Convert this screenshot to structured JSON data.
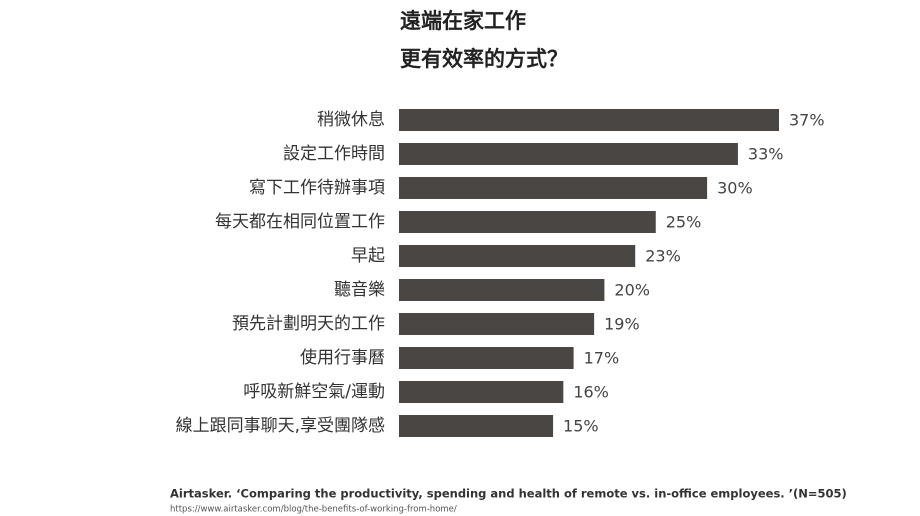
{
  "chart_data": {
    "type": "bar",
    "orientation": "horizontal",
    "title_lines": [
      "遠端在家工作",
      "更有效率的方式？"
    ],
    "categories": [
      "稍微休息",
      "設定工作時間",
      "寫下工作待辦事項",
      "每天都在相同位置工作",
      "早起",
      "聽音樂",
      "預先計劃明天的工作",
      "使用行事曆",
      "呼吸新鮮空氣/運動",
      "線上跟同事聊天,享受團隊感"
    ],
    "values": [
      37,
      33,
      30,
      25,
      23,
      20,
      19,
      17,
      16,
      15
    ],
    "value_labels": [
      "37%",
      "33%",
      "30%",
      "25%",
      "23%",
      "20%",
      "19%",
      "17%",
      "16%",
      "15%"
    ],
    "color": "#4a4644",
    "source": "Airtasker. ‘Comparing the productivity, spending and health of remote vs. in-office employees. ’(N=505)",
    "source_url": "https://www.airtasker.com/blog/the-benefits-of-working-from-home/"
  }
}
